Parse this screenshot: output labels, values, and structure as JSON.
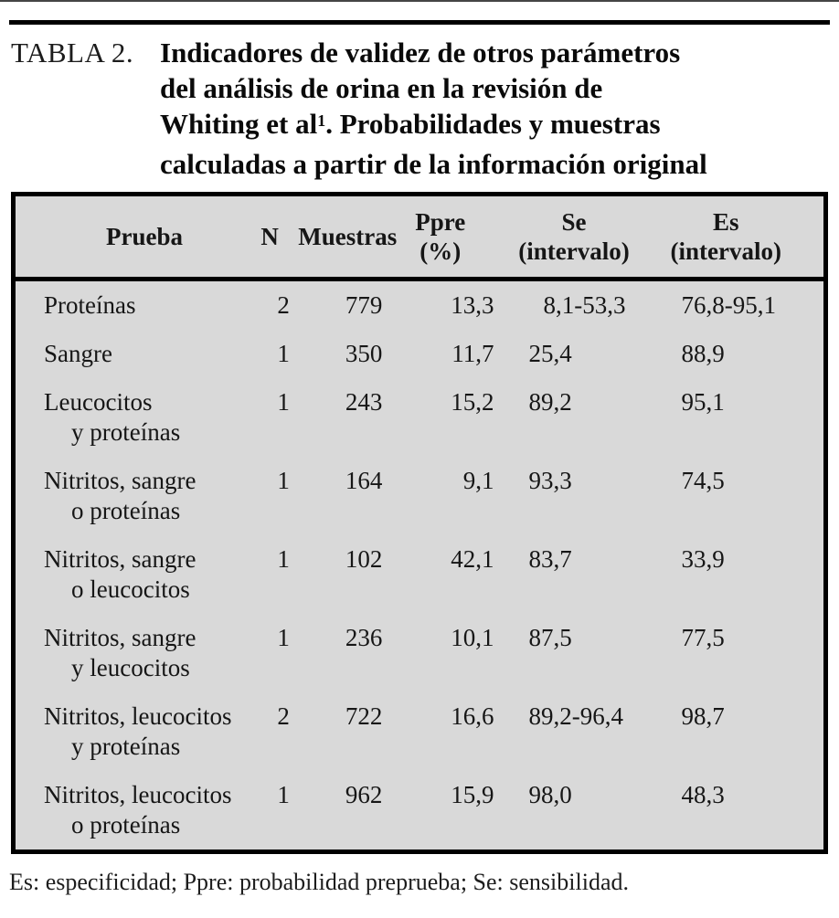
{
  "document": {
    "label": "TABLA 2.",
    "title": {
      "line1": "Indicadores de validez de otros parámetros",
      "line2": "del análisis de orina en la revisión de",
      "line3_pre": "Whiting et al",
      "line3_sup": "1",
      "line3_post": ". Probabilidades y muestras",
      "line4": "calculadas a partir de la información original"
    },
    "footnote": "Es: especificidad; Ppre: probabilidad preprueba; Se: sensibilidad."
  },
  "table": {
    "header": {
      "prueba": "Prueba",
      "n": "N",
      "muestras": "Muestras",
      "ppre_line1": "Ppre",
      "ppre_line2": "(%)",
      "se_line1": "Se",
      "se_line2": "(intervalo)",
      "es_line1": "Es",
      "es_line2": "(intervalo)"
    },
    "rows": [
      {
        "prueba_line1": "Proteínas",
        "prueba_line2": "",
        "n": "2",
        "muestras": "779",
        "ppre": "13,3",
        "se": "8,1-53,3",
        "es": "76,8-95,1"
      },
      {
        "prueba_line1": "Sangre",
        "prueba_line2": "",
        "n": "1",
        "muestras": "350",
        "ppre": "11,7",
        "se": "25,4",
        "es": "88,9"
      },
      {
        "prueba_line1": "Leucocitos",
        "prueba_line2": "y proteínas",
        "n": "1",
        "muestras": "243",
        "ppre": "15,2",
        "se": "89,2",
        "es": "95,1"
      },
      {
        "prueba_line1": "Nitritos, sangre",
        "prueba_line2": "o proteínas",
        "n": "1",
        "muestras": "164",
        "ppre": "9,1",
        "se": "93,3",
        "es": "74,5"
      },
      {
        "prueba_line1": "Nitritos, sangre",
        "prueba_line2": "o leucocitos",
        "n": "1",
        "muestras": "102",
        "ppre": "42,1",
        "se": "83,7",
        "es": "33,9"
      },
      {
        "prueba_line1": "Nitritos, sangre",
        "prueba_line2": "y leucocitos",
        "n": "1",
        "muestras": "236",
        "ppre": "10,1",
        "se": "87,5",
        "es": "77,5"
      },
      {
        "prueba_line1": "Nitritos, leucocitos",
        "prueba_line2": "y proteínas",
        "n": "2",
        "muestras": "722",
        "ppre": "16,6",
        "se": "89,2-96,4",
        "es": "98,7"
      },
      {
        "prueba_line1": "Nitritos, leucocitos",
        "prueba_line2": "o proteínas",
        "n": "1",
        "muestras": "962",
        "ppre": "15,9",
        "se": "98,0",
        "es": "48,3"
      }
    ],
    "colors": {
      "table_bg": "#d9d9d9",
      "border": "#000000",
      "text": "#141414"
    }
  }
}
